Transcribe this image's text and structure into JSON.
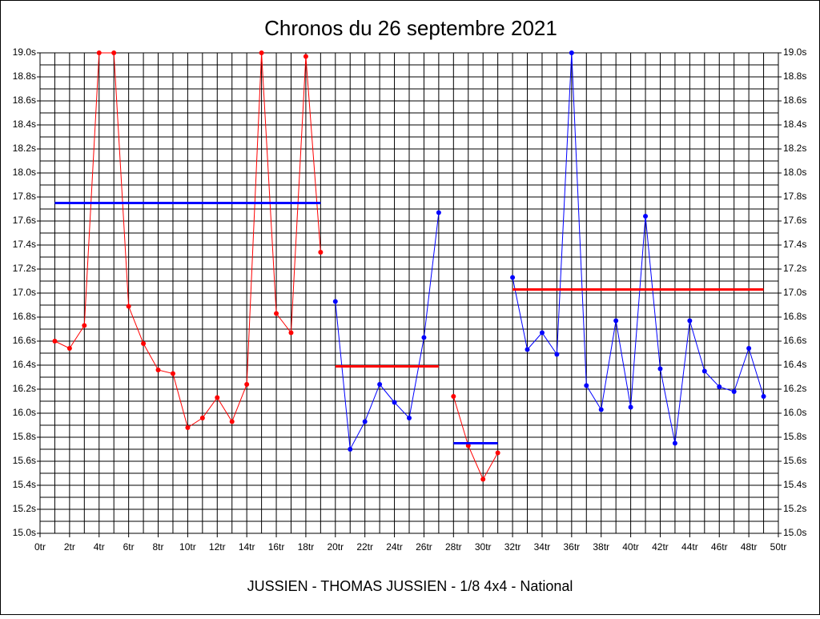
{
  "chart_data": {
    "type": "line",
    "title": "Chronos du 26 septembre 2021",
    "subtitle": "JUSSIEN - THOMAS JUSSIEN - 1/8 4x4 - National",
    "xlim": [
      0,
      50
    ],
    "ylim": [
      15.0,
      19.0
    ],
    "grid": true,
    "right_axis_labels": true,
    "xticks": [
      {
        "value": 0,
        "label": "0tr"
      },
      {
        "value": 2,
        "label": "2tr"
      },
      {
        "value": 4,
        "label": "4tr"
      },
      {
        "value": 6,
        "label": "6tr"
      },
      {
        "value": 8,
        "label": "8tr"
      },
      {
        "value": 10,
        "label": "10tr"
      },
      {
        "value": 12,
        "label": "12tr"
      },
      {
        "value": 14,
        "label": "14tr"
      },
      {
        "value": 16,
        "label": "16tr"
      },
      {
        "value": 18,
        "label": "18tr"
      },
      {
        "value": 20,
        "label": "20tr"
      },
      {
        "value": 22,
        "label": "22tr"
      },
      {
        "value": 24,
        "label": "24tr"
      },
      {
        "value": 26,
        "label": "26tr"
      },
      {
        "value": 28,
        "label": "28tr"
      },
      {
        "value": 30,
        "label": "30tr"
      },
      {
        "value": 32,
        "label": "32tr"
      },
      {
        "value": 34,
        "label": "34tr"
      },
      {
        "value": 36,
        "label": "36tr"
      },
      {
        "value": 38,
        "label": "38tr"
      },
      {
        "value": 40,
        "label": "40tr"
      },
      {
        "value": 42,
        "label": "42tr"
      },
      {
        "value": 44,
        "label": "44tr"
      },
      {
        "value": 46,
        "label": "46tr"
      },
      {
        "value": 48,
        "label": "48tr"
      },
      {
        "value": 50,
        "label": "50tr"
      }
    ],
    "xminor": [
      1,
      3,
      5,
      7,
      9,
      11,
      13,
      15,
      17,
      19,
      21,
      23,
      25,
      27,
      29,
      31,
      33,
      35,
      37,
      39,
      41,
      43,
      45,
      47,
      49
    ],
    "yticks": [
      {
        "value": 15.0,
        "label": "15.0s"
      },
      {
        "value": 15.2,
        "label": "15.2s"
      },
      {
        "value": 15.4,
        "label": "15.4s"
      },
      {
        "value": 15.6,
        "label": "15.6s"
      },
      {
        "value": 15.8,
        "label": "15.8s"
      },
      {
        "value": 16.0,
        "label": "16.0s"
      },
      {
        "value": 16.2,
        "label": "16.2s"
      },
      {
        "value": 16.4,
        "label": "16.4s"
      },
      {
        "value": 16.6,
        "label": "16.6s"
      },
      {
        "value": 16.8,
        "label": "16.8s"
      },
      {
        "value": 17.0,
        "label": "17.0s"
      },
      {
        "value": 17.2,
        "label": "17.2s"
      },
      {
        "value": 17.4,
        "label": "17.4s"
      },
      {
        "value": 17.6,
        "label": "17.6s"
      },
      {
        "value": 17.8,
        "label": "17.8s"
      },
      {
        "value": 18.0,
        "label": "18.0s"
      },
      {
        "value": 18.2,
        "label": "18.2s"
      },
      {
        "value": 18.4,
        "label": "18.4s"
      },
      {
        "value": 18.6,
        "label": "18.6s"
      },
      {
        "value": 18.8,
        "label": "18.8s"
      },
      {
        "value": 19.0,
        "label": "19.0s"
      }
    ],
    "yminor": [
      15.1,
      15.3,
      15.5,
      15.7,
      15.9,
      16.1,
      16.3,
      16.5,
      16.7,
      16.9,
      17.1,
      17.3,
      17.5,
      17.7,
      17.9,
      18.1,
      18.3,
      18.5,
      18.7,
      18.9
    ],
    "series": [
      {
        "color": "#ff0000",
        "markers": true,
        "x": [
          1,
          2,
          3,
          4,
          5,
          6,
          7,
          8,
          9,
          10,
          11,
          12,
          13,
          14,
          15,
          16,
          17,
          18,
          19
        ],
        "values": [
          16.6,
          16.54,
          16.73,
          19.0,
          19.0,
          16.89,
          16.58,
          16.36,
          16.33,
          15.88,
          15.96,
          16.13,
          15.93,
          16.24,
          19.0,
          16.83,
          16.67,
          18.97,
          17.34
        ]
      },
      {
        "color": "#0000ff",
        "markers": false,
        "x": [
          1,
          19
        ],
        "values": [
          17.75,
          17.75
        ]
      },
      {
        "color": "#0000ff",
        "markers": true,
        "x": [
          20,
          21,
          22,
          23,
          24,
          25,
          26,
          27
        ],
        "values": [
          16.93,
          15.7,
          15.93,
          16.24,
          16.09,
          15.96,
          16.63,
          17.67
        ]
      },
      {
        "color": "#ff0000",
        "markers": false,
        "x": [
          20,
          27
        ],
        "values": [
          16.39,
          16.39
        ]
      },
      {
        "color": "#ff0000",
        "markers": true,
        "x": [
          28,
          29,
          30,
          31
        ],
        "values": [
          16.14,
          15.73,
          15.45,
          15.67
        ]
      },
      {
        "color": "#0000ff",
        "markers": false,
        "x": [
          28,
          31
        ],
        "values": [
          15.75,
          15.75
        ]
      },
      {
        "color": "#0000ff",
        "markers": true,
        "x": [
          32,
          33,
          34,
          35,
          36,
          37,
          38,
          39,
          40,
          41,
          42,
          43,
          44,
          45,
          46,
          47,
          48,
          49
        ],
        "values": [
          17.13,
          16.53,
          16.67,
          16.49,
          19.0,
          16.23,
          16.03,
          16.77,
          16.05,
          17.64,
          16.37,
          15.75,
          16.77,
          16.35,
          16.22,
          16.18,
          16.54,
          16.14
        ]
      },
      {
        "color": "#ff0000",
        "markers": false,
        "x": [
          32,
          49
        ],
        "values": [
          17.03,
          17.03
        ]
      }
    ]
  }
}
